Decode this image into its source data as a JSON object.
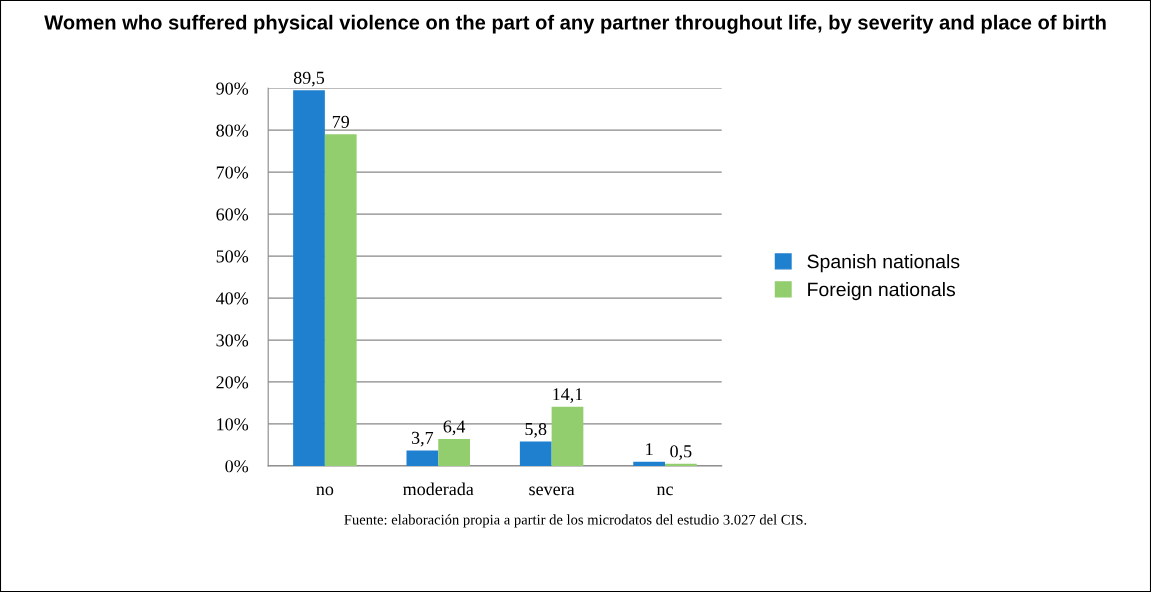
{
  "chart_data": {
    "type": "bar",
    "title": "Women who suffered physical violence on the part of any partner throughout life, by severity and place of birth",
    "categories": [
      "no",
      "moderada",
      "severa",
      "nc"
    ],
    "series": [
      {
        "name": "Spanish nationals",
        "color": "#2080d0",
        "values": [
          89.5,
          3.7,
          5.8,
          1
        ],
        "value_labels": [
          "89,5",
          "3,7",
          "5,8",
          "1"
        ]
      },
      {
        "name": "Foreign nationals",
        "color": "#92cd6e",
        "values": [
          79,
          6.4,
          14.1,
          0.5
        ],
        "value_labels": [
          "79",
          "6,4",
          "14,1",
          "0,5"
        ]
      }
    ],
    "ylim": [
      0,
      90
    ],
    "yticks": [
      {
        "value": 0,
        "label": "0%"
      },
      {
        "value": 10,
        "label": "10%"
      },
      {
        "value": 20,
        "label": "20%"
      },
      {
        "value": 30,
        "label": "30%"
      },
      {
        "value": 40,
        "label": "40%"
      },
      {
        "value": 50,
        "label": "50%"
      },
      {
        "value": 60,
        "label": "60%"
      },
      {
        "value": 70,
        "label": "70%"
      },
      {
        "value": 80,
        "label": "80%"
      },
      {
        "value": 90,
        "label": "90%"
      }
    ],
    "grid": "y",
    "legend": "right",
    "annotations": [
      "Fuente: elaboración propia a partir de los microdatos del estudio 3.027 del CIS."
    ]
  }
}
